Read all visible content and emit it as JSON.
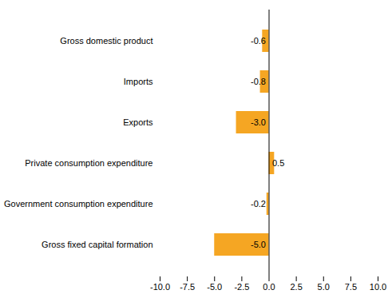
{
  "chart_data": {
    "type": "bar",
    "orientation": "horizontal",
    "categories": [
      "Gross fixed capital formation",
      "Government consumption expenditure",
      "Private consumption expenditure",
      "Exports",
      "Imports",
      "Gross domestic product"
    ],
    "values": [
      -5.0,
      -0.2,
      0.5,
      -3.0,
      -0.8,
      -0.6
    ],
    "value_labels": [
      "-5.0",
      "-0.2",
      "0.5",
      "-3.0",
      "-0.8",
      "-0.6"
    ],
    "data_labels": true,
    "color": "#F5A623",
    "xlim": [
      -10.0,
      10.0
    ],
    "xticks": [
      {
        "value": -10.0,
        "label": "-10.0"
      },
      -7.5,
      {
        "value": -5.0,
        "label": "-5.0"
      },
      -2.5,
      {
        "value": 0.0,
        "label": "0.0"
      },
      2.5,
      {
        "value": 5.0,
        "label": "5.0"
      },
      7.5,
      {
        "value": 10.0,
        "label": "10.0"
      }
    ],
    "grid": false
  }
}
